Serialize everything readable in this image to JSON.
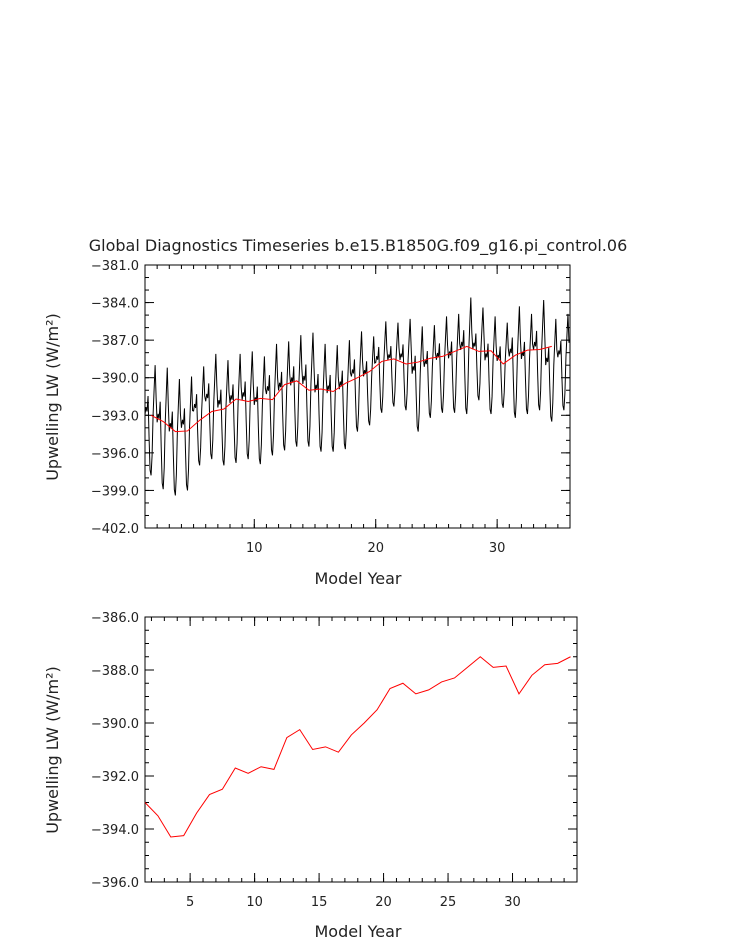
{
  "title": "Global Diagnostics Timeseries b.e15.B1850G.f09_g16.pi_control.06",
  "colors": {
    "monthly": "#000000",
    "annual": "#ff0000",
    "axis": "#000000"
  },
  "chart_data": [
    {
      "type": "line",
      "title": "Global Diagnostics Timeseries b.e15.B1850G.f09_g16.pi_control.06",
      "xlabel": "Model Year",
      "ylabel": "Upwelling LW (W/m²)",
      "xlim": [
        1,
        36
      ],
      "ylim": [
        -402.0,
        -381.0
      ],
      "xticks": [
        "10",
        "20",
        "30"
      ],
      "xtick_values": [
        10,
        20,
        30
      ],
      "yticks": [
        "−381.0",
        "−384.0",
        "−387.0",
        "−390.0",
        "−393.0",
        "−396.0",
        "−399.0",
        "−402.0"
      ],
      "ytick_values": [
        -381,
        -384,
        -387,
        -390,
        -393,
        -396,
        -399,
        -402
      ],
      "grid": false,
      "series": [
        {
          "style": "monthly",
          "x_start": 1.0,
          "x_step": 0.08333,
          "annual_max": [
            -389.0,
            -389.2,
            -390.1,
            -389.9,
            -389.1,
            -388.1,
            -388.6,
            -388.1,
            -387.9,
            -388.3,
            -387.3,
            -387.1,
            -386.6,
            -386.4,
            -387.3,
            -387.4,
            -387.0,
            -386.3,
            -386.7,
            -385.5,
            -385.6,
            -385.3,
            -385.9,
            -385.8,
            -385.1,
            -384.9,
            -383.6,
            -384.4,
            -385.1,
            -385.6,
            -384.3,
            -384.9,
            -383.8,
            -385.3,
            -384.9
          ],
          "annual_min": [
            -397.8,
            -398.9,
            -399.4,
            -399.0,
            -397.0,
            -396.5,
            -397.0,
            -396.8,
            -396.5,
            -396.9,
            -396.2,
            -395.8,
            -395.5,
            -395.5,
            -395.9,
            -395.9,
            -395.7,
            -394.3,
            -393.8,
            -392.8,
            -392.3,
            -392.6,
            -394.3,
            -393.2,
            -392.8,
            -392.8,
            -392.9,
            -391.8,
            -392.9,
            -392.4,
            -393.2,
            -392.9,
            -392.6,
            -393.5,
            -392.6
          ]
        },
        {
          "style": "annual",
          "x": [
            1.5,
            2.5,
            3.5,
            4.5,
            5.5,
            6.5,
            7.5,
            8.5,
            9.5,
            10.5,
            11.5,
            12.5,
            13.5,
            14.5,
            15.5,
            16.5,
            17.5,
            18.5,
            19.5,
            20.5,
            21.5,
            22.5,
            23.5,
            24.5,
            25.5,
            26.5,
            27.5,
            28.5,
            29.5,
            30.5,
            31.5,
            32.5,
            33.5,
            34.5
          ],
          "y": [
            -393.0,
            -393.5,
            -394.3,
            -394.25,
            -393.4,
            -392.7,
            -392.5,
            -391.7,
            -391.9,
            -391.65,
            -391.75,
            -390.55,
            -390.25,
            -391.0,
            -390.9,
            -391.1,
            -390.45,
            -390.0,
            -389.5,
            -388.7,
            -388.5,
            -388.9,
            -388.75,
            -388.45,
            -388.3,
            -387.9,
            -387.5,
            -387.9,
            -387.85,
            -388.9,
            -388.2,
            -387.8,
            -387.75,
            -387.5
          ]
        }
      ]
    },
    {
      "type": "line",
      "xlabel": "Model Year",
      "ylabel": "Upwelling LW (W/m²)",
      "xlim": [
        1.5,
        35.0
      ],
      "ylim": [
        -396.0,
        -386.0
      ],
      "xticks": [
        "5",
        "10",
        "15",
        "20",
        "25",
        "30"
      ],
      "xtick_values": [
        5,
        10,
        15,
        20,
        25,
        30
      ],
      "yticks": [
        "−386.0",
        "−388.0",
        "−390.0",
        "−392.0",
        "−394.0",
        "−396.0"
      ],
      "ytick_values": [
        -386,
        -388,
        -390,
        -392,
        -394,
        -396
      ],
      "grid": false,
      "series": [
        {
          "style": "annual",
          "x": [
            1.5,
            2.5,
            3.5,
            4.5,
            5.5,
            6.5,
            7.5,
            8.5,
            9.5,
            10.5,
            11.5,
            12.5,
            13.5,
            14.5,
            15.5,
            16.5,
            17.5,
            18.5,
            19.5,
            20.5,
            21.5,
            22.5,
            23.5,
            24.5,
            25.5,
            26.5,
            27.5,
            28.5,
            29.5,
            30.5,
            31.5,
            32.5,
            33.5,
            34.5
          ],
          "y": [
            -393.0,
            -393.5,
            -394.3,
            -394.25,
            -393.4,
            -392.7,
            -392.5,
            -391.7,
            -391.9,
            -391.65,
            -391.75,
            -390.55,
            -390.25,
            -391.0,
            -390.9,
            -391.1,
            -390.45,
            -390.0,
            -389.5,
            -388.7,
            -388.5,
            -388.9,
            -388.75,
            -388.45,
            -388.3,
            -387.9,
            -387.5,
            -387.9,
            -387.85,
            -388.9,
            -388.2,
            -387.8,
            -387.75,
            -387.5
          ]
        }
      ]
    }
  ]
}
